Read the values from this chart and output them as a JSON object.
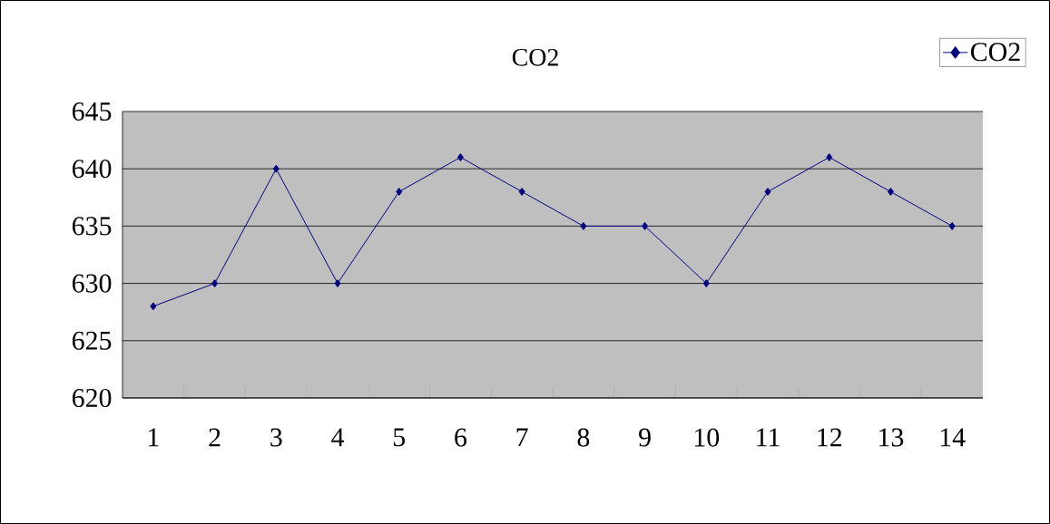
{
  "chart_data": {
    "type": "line",
    "title": "CO2",
    "categories": [
      "1",
      "2",
      "3",
      "4",
      "5",
      "6",
      "7",
      "8",
      "9",
      "10",
      "11",
      "12",
      "13",
      "14"
    ],
    "series": [
      {
        "name": "CO2",
        "color": "#000080",
        "values": [
          628,
          630,
          640,
          630,
          638,
          641,
          638,
          635,
          635,
          630,
          638,
          641,
          638,
          635
        ]
      }
    ],
    "ylim": [
      620,
      645
    ],
    "yticks": [
      620,
      625,
      630,
      635,
      640,
      645
    ],
    "grid": "y",
    "legend": "top right",
    "marker": "diamond",
    "line_style": "solid"
  }
}
